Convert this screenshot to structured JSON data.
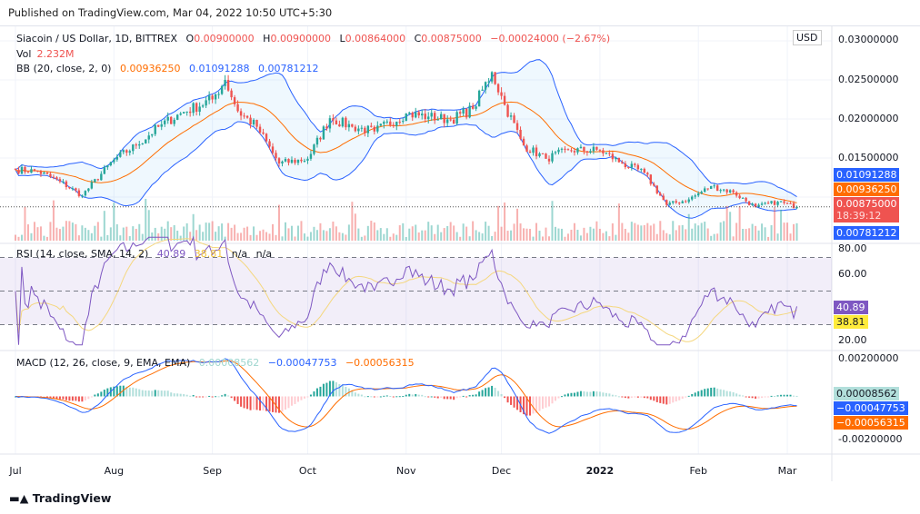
{
  "published": "Published on TradingView.com, Mar 04, 2022 10:50 UTC+5:30",
  "legend": {
    "symbol": "Siacoin / US Dollar, 1D, BITTREX",
    "o_label": "O",
    "o": "0.00900000",
    "h_label": "H",
    "h": "0.00900000",
    "l_label": "L",
    "l": "0.00864000",
    "c_label": "C",
    "c": "0.00875000",
    "change": "−0.00024000 (−2.67%)",
    "vol_label": "Vol",
    "vol": "2.232M",
    "bb_label": "BB (20, close, 2, 0)",
    "bb_basis": "0.00936250",
    "bb_upper": "0.01091288",
    "bb_lower": "0.00781212",
    "rsi_label": "RSI (14, close, SMA, 14, 2)",
    "rsi": "40.89",
    "rsi_ma": "38.81",
    "rsi_na1": "n/a",
    "rsi_na2": "n/a",
    "macd_label": "MACD (12, 26, close, 9, EMA, EMA)",
    "macd_hist": "0.00008562",
    "macd": "−0.00047753",
    "macd_signal": "−0.00056315"
  },
  "price_axis": {
    "currency": "USD",
    "ticks": [
      "0.03000000",
      "0.02500000",
      "0.02000000",
      "0.01500000"
    ],
    "tags": {
      "upper": "0.01091288",
      "basis": "0.00936250",
      "last": "0.00875000",
      "countdown": "18:39:12",
      "lower": "0.00781212"
    }
  },
  "rsi_axis": {
    "ticks": [
      "80.00",
      "60.00",
      "20.00"
    ],
    "tags": {
      "rsi": "40.89",
      "ma": "38.81"
    },
    "bands": [
      70,
      50,
      30
    ]
  },
  "macd_axis": {
    "ticks": [
      "0.00200000",
      "-0.00200000"
    ],
    "tags": {
      "hist": "0.00008562",
      "macd": "−0.00047753",
      "signal": "−0.00056315"
    }
  },
  "time_axis": [
    {
      "label": "Jul",
      "date": "2021-07-01"
    },
    {
      "label": "Aug",
      "date": "2021-08-01"
    },
    {
      "label": "Sep",
      "date": "2021-09-01"
    },
    {
      "label": "Oct",
      "date": "2021-10-01"
    },
    {
      "label": "Nov",
      "date": "2021-11-01"
    },
    {
      "label": "Dec",
      "date": "2021-12-01"
    },
    {
      "label": "2022",
      "date": "2022-01-01"
    },
    {
      "label": "Feb",
      "date": "2022-02-01"
    },
    {
      "label": "Mar",
      "date": "2022-03-01"
    }
  ],
  "colors": {
    "up": "#26a69a",
    "down": "#ef5350",
    "bb_band": "#2962ff",
    "bb_basis": "#ff6d00",
    "rsi": "#7e57c2",
    "rsi_ma": "#f5d77e",
    "macd": "#2962ff",
    "signal": "#ff6d00",
    "hist_up": "#26a69a",
    "hist_down": "#ef5350"
  },
  "chart_data": {
    "type": "candlestick",
    "title": "Siacoin / US Dollar, 1D, BITTREX",
    "xlabel": "",
    "ylabel": "",
    "ylim": [
      0.0065,
      0.031
    ],
    "closes_approx": [
      {
        "date": "2021-07-01",
        "close": 0.0135
      },
      {
        "date": "2021-07-08",
        "close": 0.0133
      },
      {
        "date": "2021-07-15",
        "close": 0.012
      },
      {
        "date": "2021-07-22",
        "close": 0.0102
      },
      {
        "date": "2021-08-01",
        "close": 0.0148
      },
      {
        "date": "2021-08-08",
        "close": 0.0166
      },
      {
        "date": "2021-08-15",
        "close": 0.019
      },
      {
        "date": "2021-08-22",
        "close": 0.0207
      },
      {
        "date": "2021-09-01",
        "close": 0.0225
      },
      {
        "date": "2021-09-05",
        "close": 0.025
      },
      {
        "date": "2021-09-09",
        "close": 0.021
      },
      {
        "date": "2021-09-15",
        "close": 0.019
      },
      {
        "date": "2021-09-22",
        "close": 0.0143
      },
      {
        "date": "2021-10-01",
        "close": 0.0149
      },
      {
        "date": "2021-10-08",
        "close": 0.0201
      },
      {
        "date": "2021-10-15",
        "close": 0.019
      },
      {
        "date": "2021-10-22",
        "close": 0.0184
      },
      {
        "date": "2021-11-01",
        "close": 0.0207
      },
      {
        "date": "2021-11-08",
        "close": 0.0203
      },
      {
        "date": "2021-11-15",
        "close": 0.0199
      },
      {
        "date": "2021-11-22",
        "close": 0.0213
      },
      {
        "date": "2021-11-28",
        "close": 0.026
      },
      {
        "date": "2021-12-02",
        "close": 0.0218
      },
      {
        "date": "2021-12-08",
        "close": 0.0166
      },
      {
        "date": "2021-12-15",
        "close": 0.0149
      },
      {
        "date": "2021-12-22",
        "close": 0.016
      },
      {
        "date": "2022-01-01",
        "close": 0.016
      },
      {
        "date": "2022-01-08",
        "close": 0.0143
      },
      {
        "date": "2022-01-15",
        "close": 0.0131
      },
      {
        "date": "2022-01-22",
        "close": 0.009
      },
      {
        "date": "2022-01-29",
        "close": 0.0097
      },
      {
        "date": "2022-02-05",
        "close": 0.0114
      },
      {
        "date": "2022-02-12",
        "close": 0.0106
      },
      {
        "date": "2022-02-19",
        "close": 0.0087
      },
      {
        "date": "2022-02-26",
        "close": 0.0094
      },
      {
        "date": "2022-03-04",
        "close": 0.00875
      }
    ],
    "last": {
      "open": 0.009,
      "high": 0.009,
      "low": 0.00864,
      "close": 0.00875,
      "volume": "2.232M"
    },
    "indicators": {
      "bb": {
        "basis": 0.0093625,
        "upper": 0.01091288,
        "lower": 0.00781212
      },
      "rsi": 40.89,
      "rsi_ma": 38.81,
      "macd_hist": 8.562e-05,
      "macd": -0.00047753,
      "macd_signal": -0.00056315
    },
    "rsi_ylim": [
      20,
      80
    ],
    "macd_ylim": [
      -0.002,
      0.002
    ],
    "grid": true
  }
}
